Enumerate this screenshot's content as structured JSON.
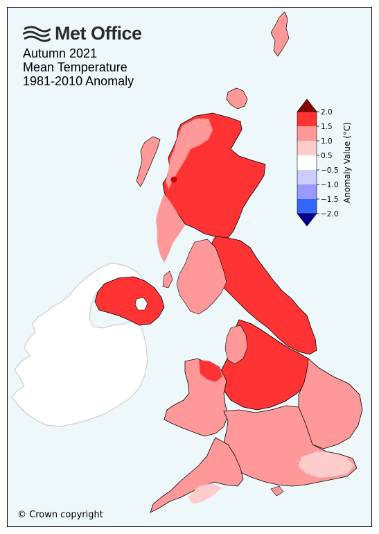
{
  "logo": {
    "text": "Met Office",
    "icon": "met-office-waves-icon"
  },
  "title": {
    "line1": "Autumn 2021",
    "line2": "Mean Temperature",
    "line3": "1981-2010 Anomaly"
  },
  "copyright": "© Crown copyright",
  "legend": {
    "label": "Anomaly Value (°C)",
    "ticks": [
      "2.0",
      "1.5",
      "1.0",
      "0.5",
      "−0.5",
      "−1.0",
      "−1.5",
      "−2.0"
    ],
    "bins": [
      {
        "range": "> 2.0",
        "color": "#8b0000"
      },
      {
        "range": "1.5 to 2.0",
        "color": "#ff3333"
      },
      {
        "range": "1.0 to 1.5",
        "color": "#ff9999"
      },
      {
        "range": "0.5 to 1.0",
        "color": "#ffcccc"
      },
      {
        "range": "-0.5 to 0.5",
        "color": "#ffffff"
      },
      {
        "range": "-1.0 to -0.5",
        "color": "#ccccff"
      },
      {
        "range": "-1.5 to -1.0",
        "color": "#9999ff"
      },
      {
        "range": "-2.0 to -1.5",
        "color": "#3366ff"
      },
      {
        "range": "< -2.0",
        "color": "#00008b"
      }
    ]
  },
  "colors": {
    "background": "#eef7fa",
    "ireland_fill": "#ffffff",
    "ireland_border": "#cccccc",
    "region_border": "#000000"
  }
}
